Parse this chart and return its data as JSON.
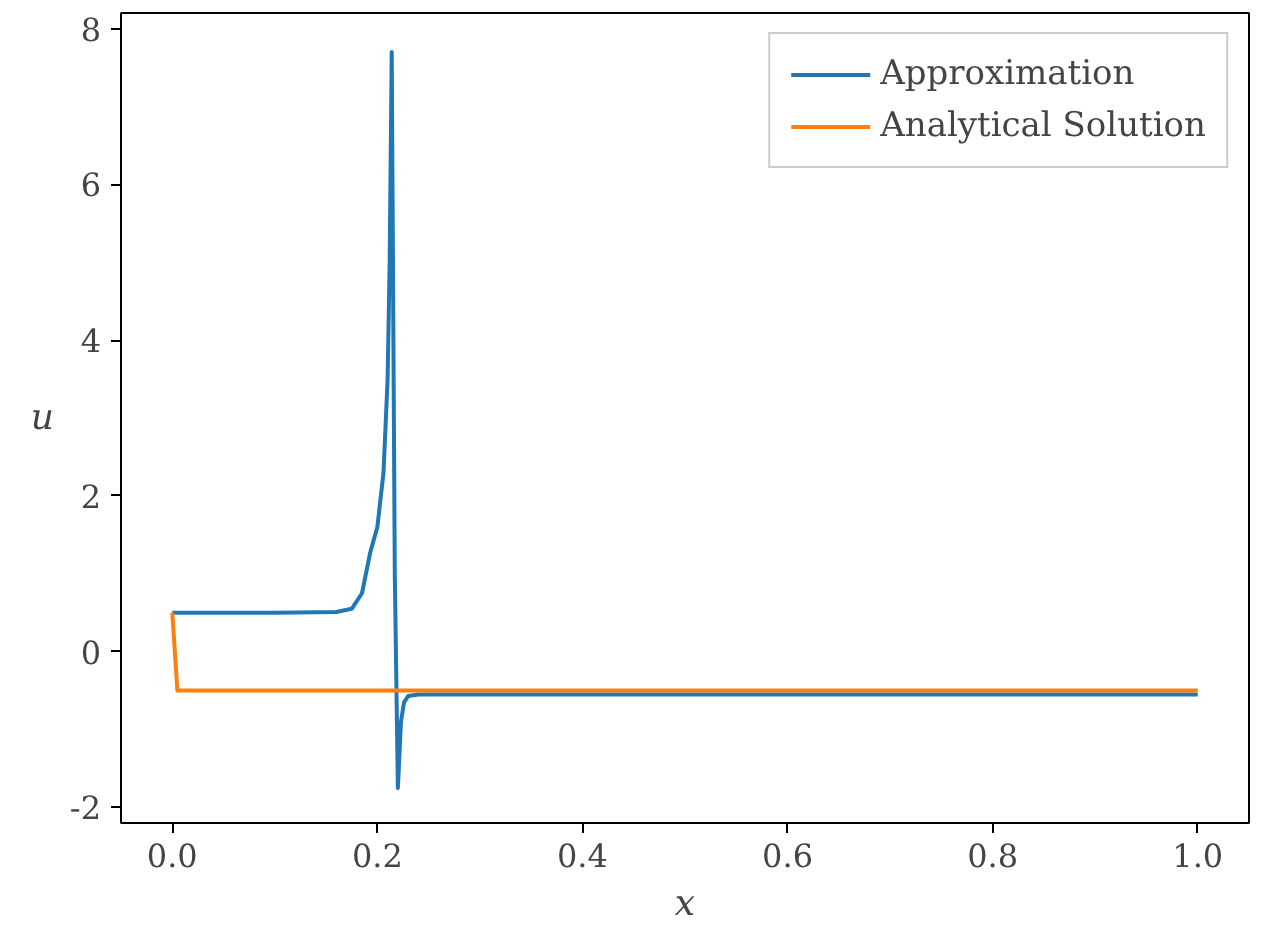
{
  "chart_data": {
    "type": "line",
    "xlabel": "x",
    "ylabel": "u",
    "xlim": [
      -0.05,
      1.05
    ],
    "ylim": [
      -2.2,
      8.2
    ],
    "xticks": [
      {
        "value": 0,
        "label": "0.0"
      },
      0.2,
      0.4,
      0.6,
      0.8,
      {
        "value": 1,
        "label": "1.0"
      }
    ],
    "yticks": [
      -2,
      0,
      2,
      4,
      6,
      8
    ],
    "grid": false,
    "legend": "top right",
    "line_style": "solid",
    "marker": "none",
    "series": [
      {
        "name": "Approximation",
        "color": "#1f77b4",
        "x": [
          0,
          0.1,
          0.16,
          0.175,
          0.185,
          0.193,
          0.2,
          0.206,
          0.21,
          0.212,
          0.214,
          0.217,
          0.22,
          0.223,
          0.226,
          0.23,
          0.24,
          0.3,
          0.5,
          0.8,
          1.0
        ],
        "values": [
          0.5,
          0.5,
          0.51,
          0.55,
          0.75,
          1.27,
          1.6,
          2.3,
          3.5,
          5.0,
          7.7,
          1.0,
          -1.75,
          -0.9,
          -0.65,
          -0.57,
          -0.55,
          -0.55,
          -0.55,
          -0.55,
          -0.55
        ]
      },
      {
        "name": "Analytical Solution",
        "color": "#ff7f0e",
        "x": [
          0,
          0.005,
          0.3,
          0.6,
          1.0
        ],
        "values": [
          0.5,
          -0.5,
          -0.5,
          -0.5,
          -0.5
        ]
      }
    ]
  }
}
